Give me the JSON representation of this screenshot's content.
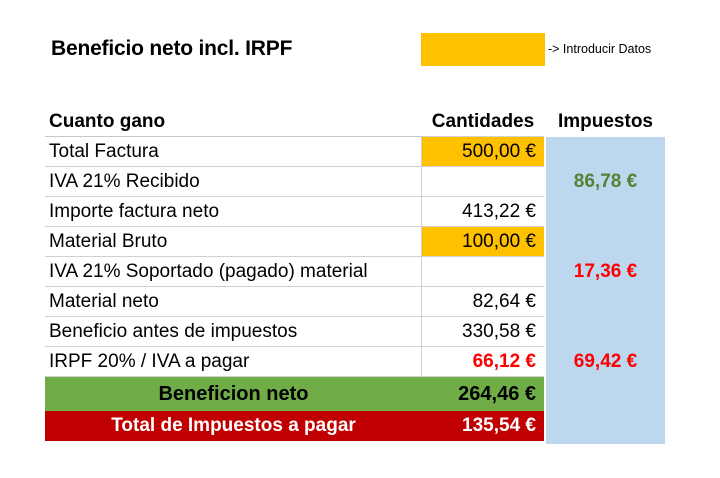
{
  "title": "Beneficio neto incl. IRPF",
  "legend": {
    "text": "-> Introducir Datos",
    "color": "#FFC000"
  },
  "table": {
    "headers": {
      "label": "Cuanto gano",
      "amount": "Cantidades",
      "tax": "Impuestos"
    },
    "rows": [
      {
        "label": "Total Factura",
        "amount": "500,00 €",
        "tax": ""
      },
      {
        "label": "IVA 21% Recibido",
        "amount": "",
        "tax": "86,78 €"
      },
      {
        "label": "Importe factura neto",
        "amount": "413,22 €",
        "tax": ""
      },
      {
        "label": "Material Bruto",
        "amount": "100,00 €",
        "tax": ""
      },
      {
        "label": "IVA 21% Soportado (pagado) material",
        "amount": "",
        "tax": "17,36 €"
      },
      {
        "label": "Material neto",
        "amount": "82,64 €",
        "tax": ""
      },
      {
        "label": "Beneficio antes de impuestos",
        "amount": "330,58 €",
        "tax": ""
      },
      {
        "label": "IRPF 20% / IVA a pagar",
        "amount": "66,12 €",
        "tax": "69,42 €"
      }
    ],
    "net": {
      "label": "Beneficion neto",
      "amount": "264,46 €"
    },
    "taxes_total": {
      "label": "Total de Impuestos a pagar",
      "amount": "135,54 €"
    }
  },
  "colors": {
    "input": "#FFC000",
    "tax_column": "#BDD7EE",
    "net_band": "#70AD47",
    "tax_band": "#C00000",
    "positive": "#548235",
    "negative": "#FF0000"
  }
}
